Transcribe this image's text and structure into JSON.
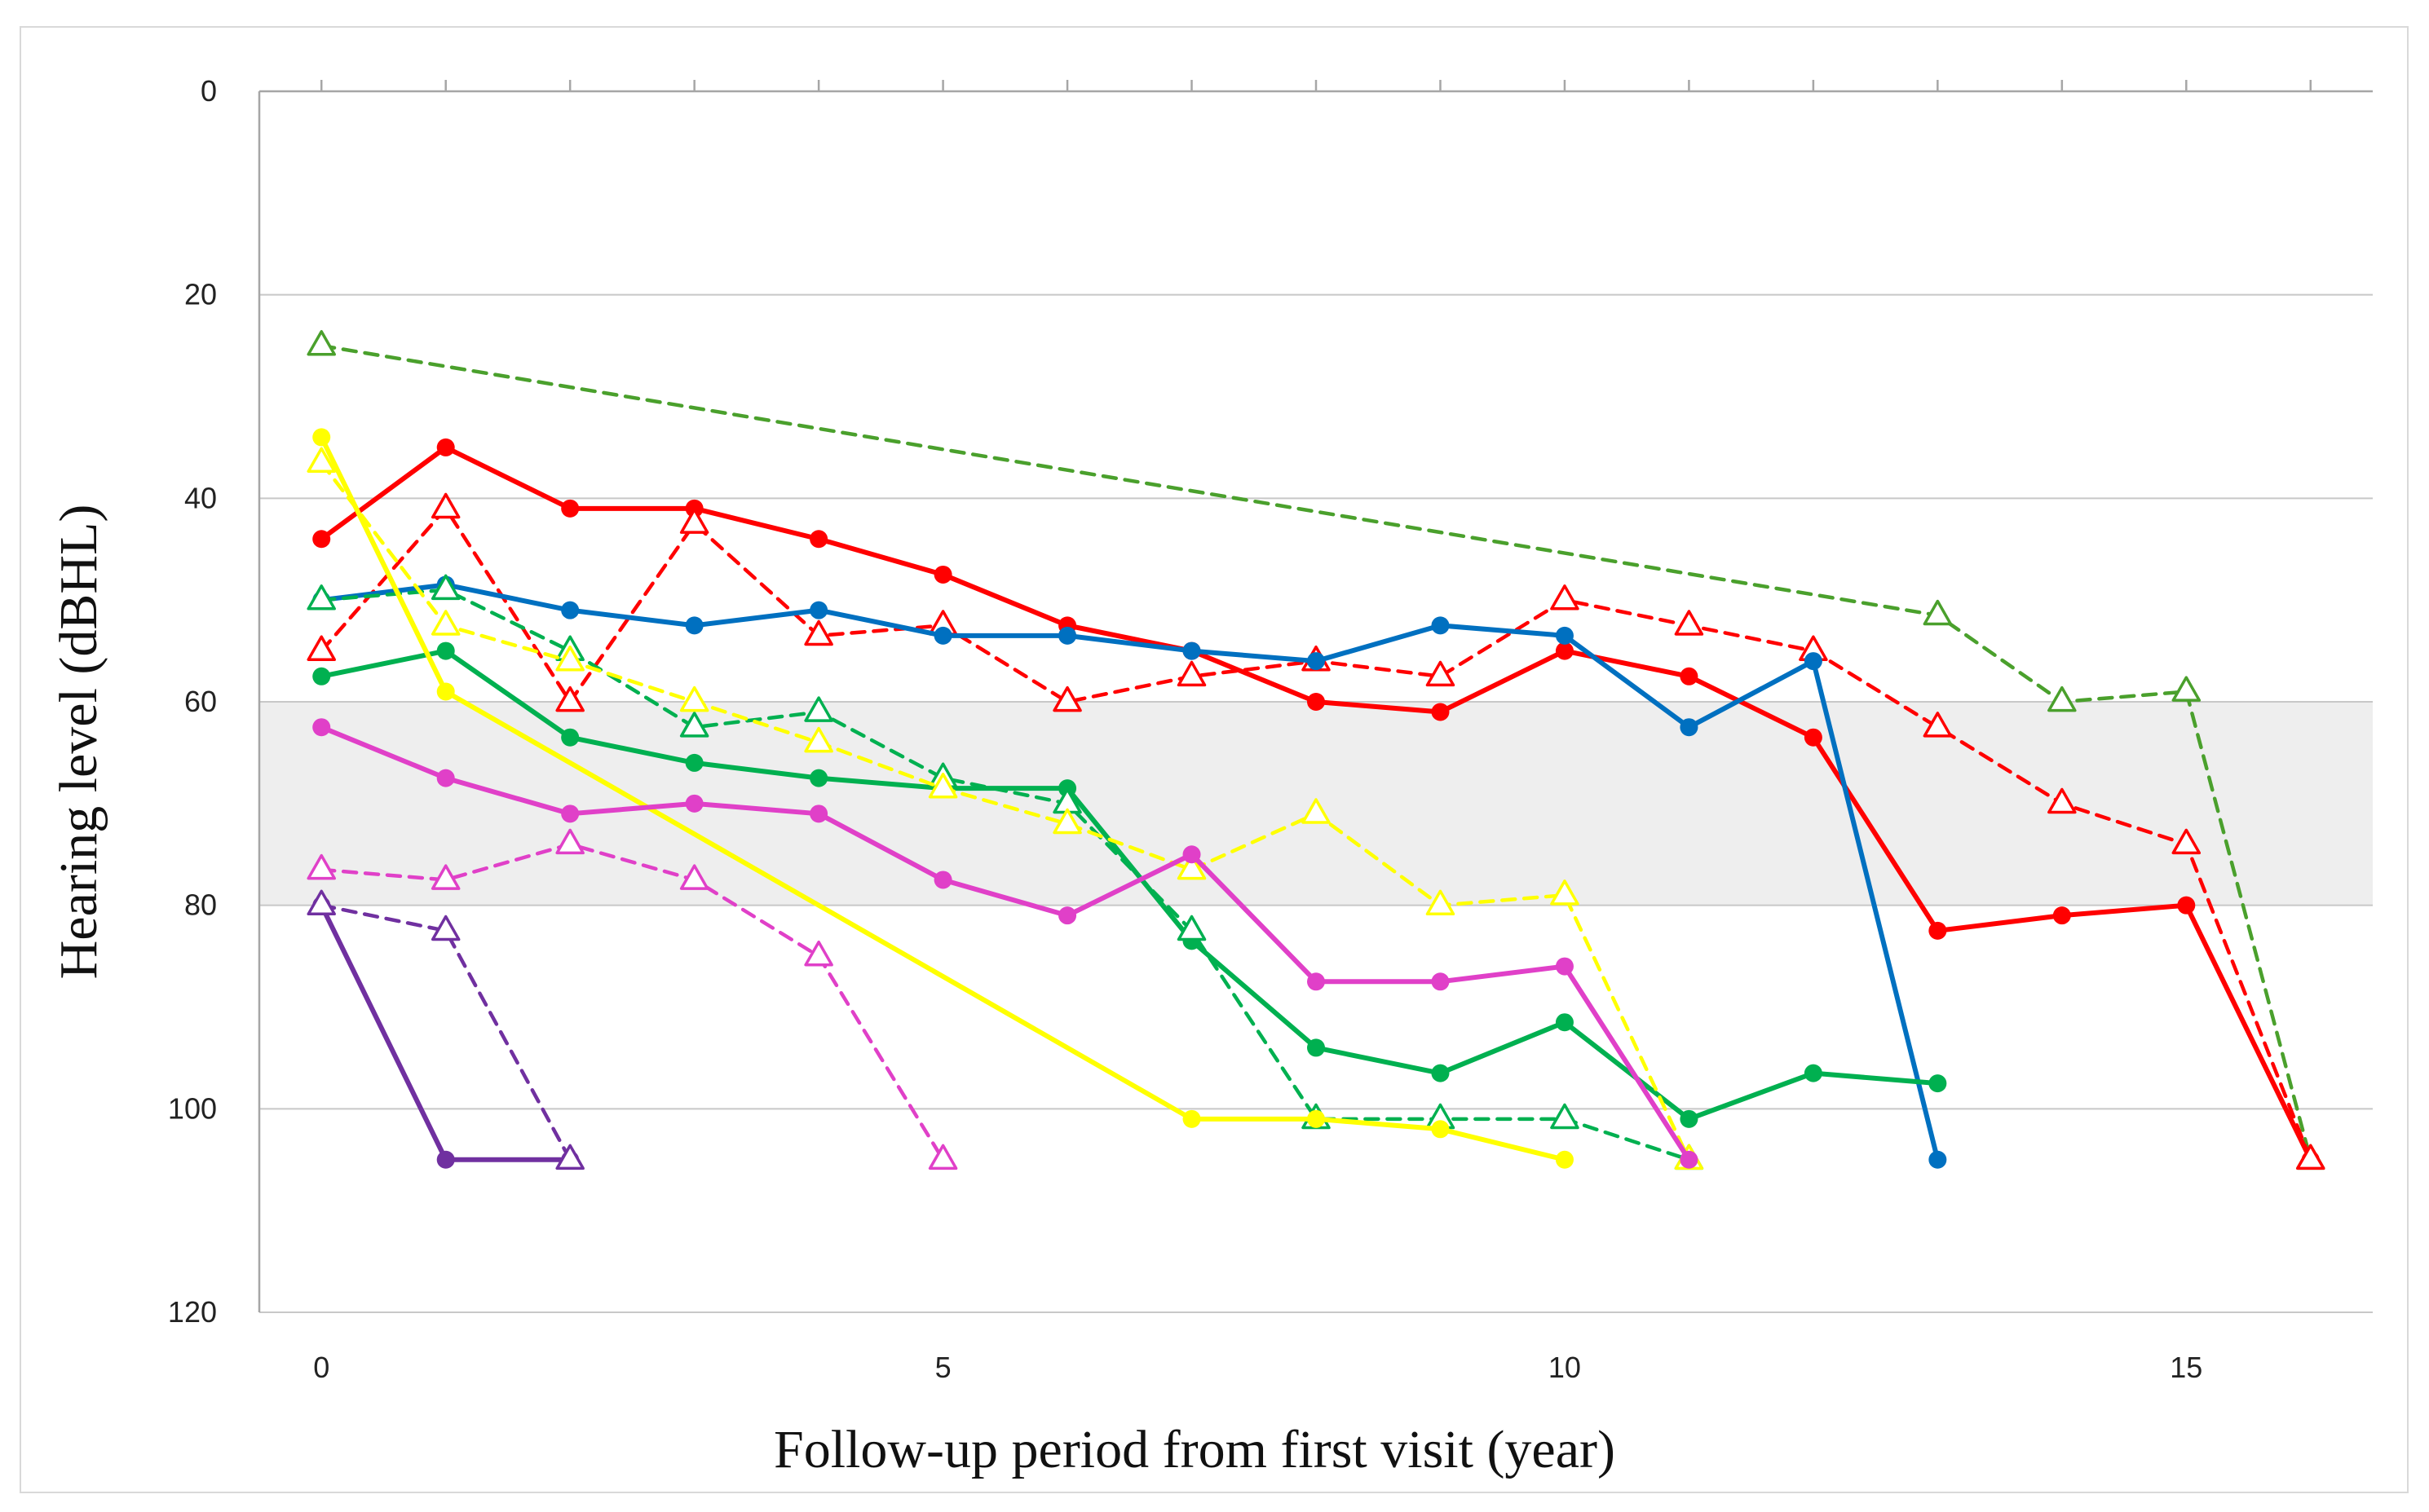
{
  "chart_data": {
    "type": "line",
    "title": "",
    "xlabel": "Follow-up period from first visit (year)",
    "ylabel": "Hearing level (dBHL)",
    "xlim": [
      -0.5,
      16.5
    ],
    "ylim": [
      0,
      120
    ],
    "y_inverted": true,
    "x_ticks": [
      0,
      5,
      10,
      15
    ],
    "y_ticks": [
      0,
      20,
      40,
      60,
      80,
      100,
      120
    ],
    "grid": "horizontal",
    "shaded_band": {
      "y_from": 60,
      "y_to": 80,
      "color": "#eeeeee"
    },
    "series": [
      {
        "name": "dark-green-dashed",
        "color": "#4aa02c",
        "dash": true,
        "marker": "triangle",
        "points": [
          [
            0,
            25
          ],
          [
            13,
            51.5
          ],
          [
            14,
            60
          ],
          [
            15,
            59
          ],
          [
            16,
            105
          ]
        ]
      },
      {
        "name": "red-solid",
        "color": "#ff0000",
        "dash": false,
        "marker": "circle",
        "points": [
          [
            0,
            44
          ],
          [
            1,
            35
          ],
          [
            2,
            41
          ],
          [
            3,
            41
          ],
          [
            4,
            44
          ],
          [
            5,
            47.5
          ],
          [
            6,
            52.5
          ],
          [
            7,
            55
          ],
          [
            8,
            60
          ],
          [
            9,
            61
          ],
          [
            10,
            55
          ],
          [
            11,
            57.5
          ],
          [
            12,
            63.5
          ],
          [
            13,
            82.5
          ],
          [
            14,
            81
          ],
          [
            15,
            80
          ],
          [
            16,
            105
          ]
        ]
      },
      {
        "name": "red-dashed",
        "color": "#ff0000",
        "dash": true,
        "marker": "triangle",
        "points": [
          [
            0,
            55
          ],
          [
            1,
            41
          ],
          [
            2,
            60
          ],
          [
            3,
            42.5
          ],
          [
            4,
            53.5
          ],
          [
            5,
            52.5
          ],
          [
            6,
            60
          ],
          [
            7,
            57.5
          ],
          [
            8,
            56
          ],
          [
            9,
            57.5
          ],
          [
            10,
            50
          ],
          [
            11,
            52.5
          ],
          [
            12,
            55
          ],
          [
            13,
            62.5
          ],
          [
            14,
            70
          ],
          [
            15,
            74
          ],
          [
            16,
            105
          ]
        ]
      },
      {
        "name": "blue-solid",
        "color": "#0070c0",
        "dash": false,
        "marker": "circle",
        "points": [
          [
            0,
            50
          ],
          [
            1,
            48.5
          ],
          [
            2,
            51
          ],
          [
            3,
            52.5
          ],
          [
            4,
            51
          ],
          [
            5,
            53.5
          ],
          [
            6,
            53.5
          ],
          [
            7,
            55
          ],
          [
            8,
            56
          ],
          [
            9,
            52.5
          ],
          [
            10,
            53.5
          ],
          [
            11,
            62.5
          ],
          [
            12,
            56
          ],
          [
            13,
            105
          ]
        ]
      },
      {
        "name": "green-solid",
        "color": "#00b050",
        "dash": false,
        "marker": "circle",
        "points": [
          [
            0,
            57.5
          ],
          [
            1,
            55
          ],
          [
            2,
            63.5
          ],
          [
            3,
            66
          ],
          [
            4,
            67.5
          ],
          [
            5,
            68.5
          ],
          [
            6,
            68.5
          ],
          [
            7,
            83.5
          ],
          [
            8,
            94
          ],
          [
            9,
            96.5
          ],
          [
            10,
            91.5
          ],
          [
            11,
            101
          ],
          [
            12,
            96.5
          ],
          [
            13,
            97.5
          ]
        ]
      },
      {
        "name": "green-dashed",
        "color": "#00b050",
        "dash": true,
        "marker": "triangle",
        "points": [
          [
            0,
            50
          ],
          [
            1,
            49
          ],
          [
            2,
            55
          ],
          [
            3,
            62.5
          ],
          [
            4,
            61
          ],
          [
            5,
            67.5
          ],
          [
            6,
            70
          ],
          [
            7,
            82.5
          ],
          [
            8,
            101
          ],
          [
            9,
            101
          ],
          [
            10,
            101
          ],
          [
            11,
            105
          ]
        ]
      },
      {
        "name": "yellow-solid",
        "color": "#ffff00",
        "dash": false,
        "marker": "circle",
        "points": [
          [
            0,
            34
          ],
          [
            1,
            59
          ],
          [
            7,
            101
          ],
          [
            8,
            101
          ],
          [
            9,
            102
          ],
          [
            10,
            105
          ]
        ]
      },
      {
        "name": "yellow-dashed",
        "color": "#ffff00",
        "dash": true,
        "marker": "triangle",
        "points": [
          [
            0,
            36.5
          ],
          [
            1,
            52.5
          ],
          [
            2,
            56
          ],
          [
            3,
            60
          ],
          [
            4,
            64
          ],
          [
            5,
            68.5
          ],
          [
            6,
            72
          ],
          [
            7,
            76.5
          ],
          [
            8,
            71
          ],
          [
            9,
            80
          ],
          [
            10,
            79
          ],
          [
            11,
            105
          ]
        ]
      },
      {
        "name": "pink-solid",
        "color": "#e040c8",
        "dash": false,
        "marker": "circle",
        "points": [
          [
            0,
            62.5
          ],
          [
            1,
            67.5
          ],
          [
            2,
            71
          ],
          [
            3,
            70
          ],
          [
            4,
            71
          ],
          [
            5,
            77.5
          ],
          [
            6,
            81
          ],
          [
            7,
            75
          ],
          [
            8,
            87.5
          ],
          [
            9,
            87.5
          ],
          [
            10,
            86
          ],
          [
            11,
            105
          ]
        ]
      },
      {
        "name": "pink-dashed",
        "color": "#e040c8",
        "dash": true,
        "marker": "triangle",
        "points": [
          [
            0,
            76.5
          ],
          [
            1,
            77.5
          ],
          [
            2,
            74
          ],
          [
            3,
            77.5
          ],
          [
            4,
            85
          ],
          [
            5,
            105
          ]
        ]
      },
      {
        "name": "purple-solid",
        "color": "#7030a0",
        "dash": false,
        "marker": "circle",
        "points": [
          [
            0,
            80
          ],
          [
            1,
            105
          ],
          [
            2,
            105
          ]
        ]
      },
      {
        "name": "purple-dashed",
        "color": "#7030a0",
        "dash": true,
        "marker": "triangle",
        "points": [
          [
            0,
            80
          ],
          [
            1,
            82.5
          ],
          [
            2,
            105
          ]
        ]
      }
    ]
  }
}
